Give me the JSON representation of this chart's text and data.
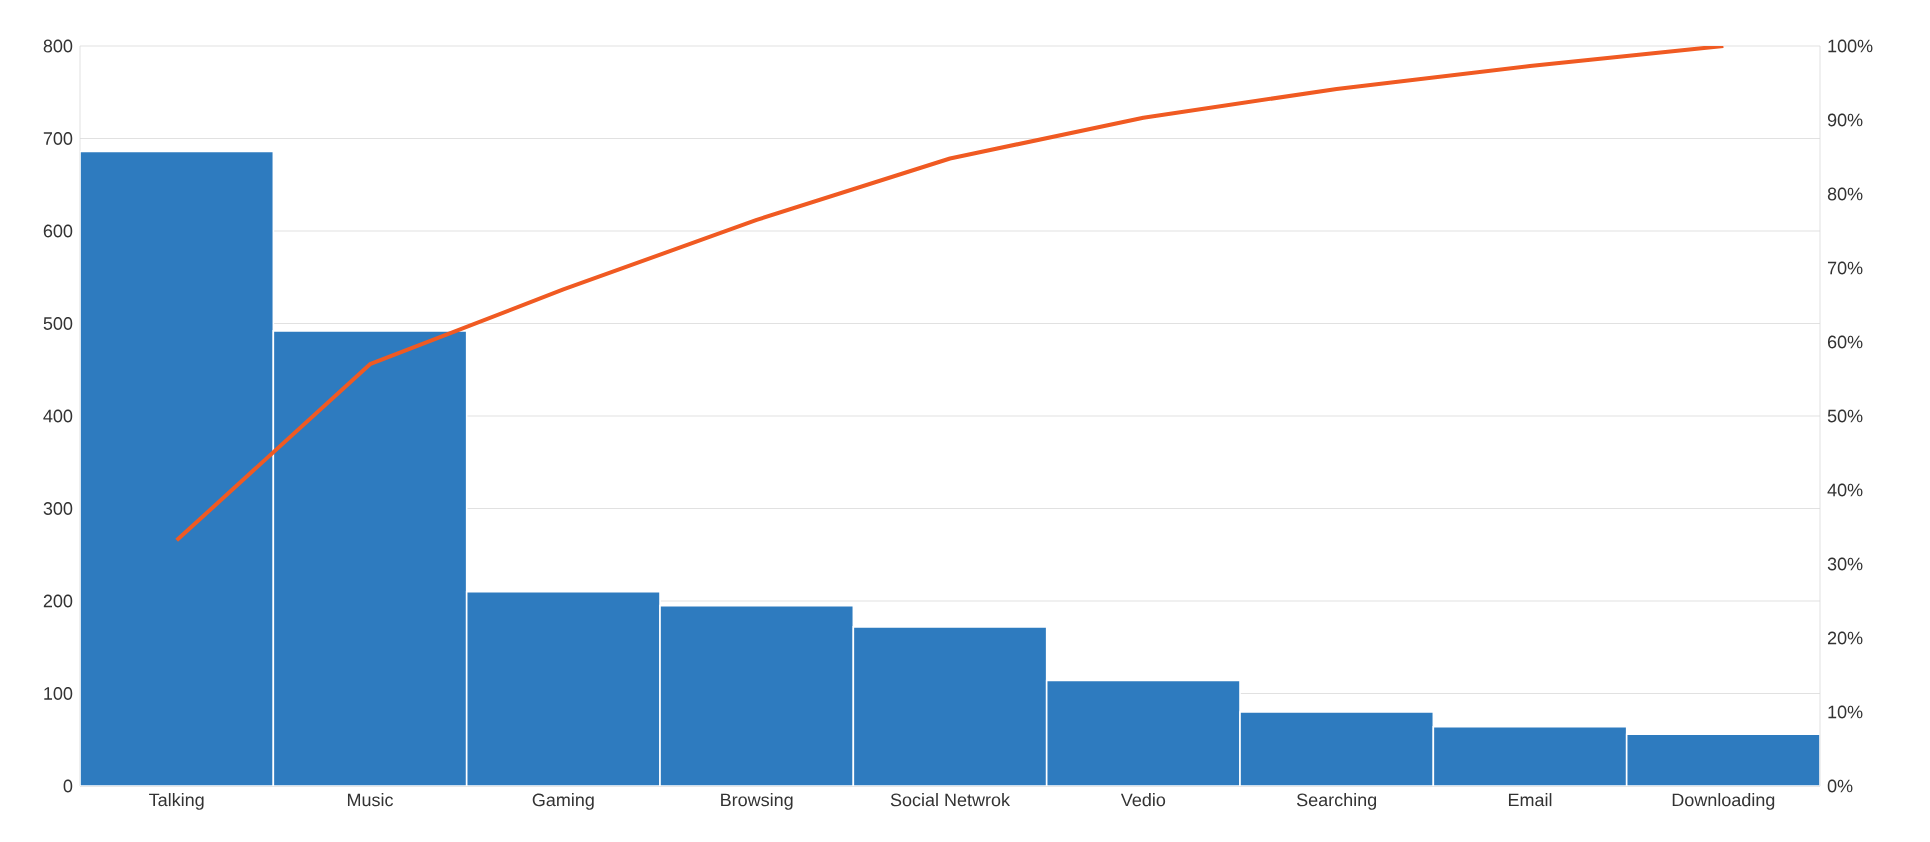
{
  "chart_data": {
    "type": "bar",
    "categories": [
      "Talking",
      "Music",
      "Gaming",
      "Browsing",
      "Social Netwrok",
      "Vedio",
      "Searching",
      "Email",
      "Downloading"
    ],
    "series": [
      {
        "color": "#2e7bbf",
        "values": [
          686,
          492,
          210,
          195,
          172,
          114,
          80,
          64,
          56
        ]
      },
      {
        "type": "line",
        "axis": "y2",
        "color": "#f05a22",
        "values": [
          33.2,
          57.0,
          67.1,
          76.5,
          84.8,
          90.3,
          94.2,
          97.3,
          100
        ]
      }
    ],
    "ylim": [
      0,
      800
    ],
    "yticks": [
      0,
      100,
      200,
      300,
      400,
      500,
      600,
      700,
      800
    ],
    "y2lim": [
      0,
      100
    ],
    "y2ticks": [
      {
        "value": 0,
        "label": "0%"
      },
      {
        "value": 10,
        "label": "10%"
      },
      {
        "value": 20,
        "label": "20%"
      },
      {
        "value": 30,
        "label": "30%"
      },
      {
        "value": 40,
        "label": "40%"
      },
      {
        "value": 50,
        "label": "50%"
      },
      {
        "value": 60,
        "label": "60%"
      },
      {
        "value": 70,
        "label": "70%"
      },
      {
        "value": 80,
        "label": "80%"
      },
      {
        "value": 90,
        "label": "90%"
      },
      {
        "value": 100,
        "label": "100%"
      }
    ],
    "grid": "y",
    "marker": "none",
    "line_style": "solid"
  }
}
